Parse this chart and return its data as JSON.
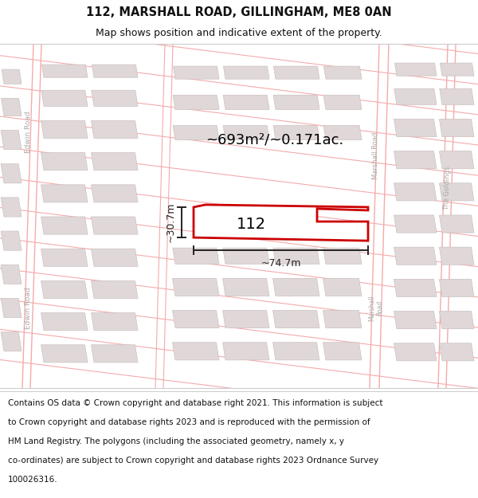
{
  "title_line1": "112, MARSHALL ROAD, GILLINGHAM, ME8 0AN",
  "title_line2": "Map shows position and indicative extent of the property.",
  "footer_lines": [
    "Contains OS data © Crown copyright and database right 2021. This information is subject",
    "to Crown copyright and database rights 2023 and is reproduced with the permission of",
    "HM Land Registry. The polygons (including the associated geometry, namely x, y",
    "co-ordinates) are subject to Crown copyright and database rights 2023 Ordnance Survey",
    "100026316."
  ],
  "area_label": "~693m²/~0.171ac.",
  "width_label": "~74.7m",
  "height_label": "~30.7m",
  "property_label": "112",
  "map_bg": "#ffffff",
  "road_line_color": "#f5aaaa",
  "road_major_color": "#f5aaaa",
  "building_fill": "#e0d8d8",
  "building_edge": "#ccbfbf",
  "property_edge": "#cc0000",
  "property_fill": "#ffffff",
  "dim_color": "#222222",
  "title_color": "#111111",
  "road_label_color": "#aaaaaa",
  "title_fontsize": 10.5,
  "subtitle_fontsize": 9,
  "footer_fontsize": 7.5
}
